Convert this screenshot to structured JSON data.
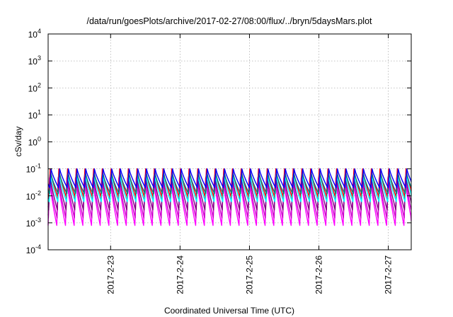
{
  "chart_data": {
    "type": "line",
    "title": "/data/run/goesPlots/archive/2017-02-27/08:00/flux/../bryn/5daysMars.plot",
    "xlabel": "Coordinated Universal Time (UTC)",
    "ylabel": "cSv/day",
    "yscale": "log",
    "ylim": [
      0.0001,
      10000
    ],
    "y_ticks": [
      {
        "value": 0.0001,
        "base": "10",
        "exp": "-4"
      },
      {
        "value": 0.001,
        "base": "10",
        "exp": "-3"
      },
      {
        "value": 0.01,
        "base": "10",
        "exp": "-2"
      },
      {
        "value": 0.1,
        "base": "10",
        "exp": "-1"
      },
      {
        "value": 1,
        "base": "10",
        "exp": "0"
      },
      {
        "value": 10,
        "base": "10",
        "exp": "1"
      },
      {
        "value": 100,
        "base": "10",
        "exp": "2"
      },
      {
        "value": 1000,
        "base": "10",
        "exp": "3"
      },
      {
        "value": 10000,
        "base": "10",
        "exp": "4"
      }
    ],
    "x_range_days": [
      22.1,
      27.33
    ],
    "x_ticks": [
      {
        "day": 23,
        "label": "2017-2-23"
      },
      {
        "day": 24,
        "label": "2017-2-24"
      },
      {
        "day": 25,
        "label": "2017-2-25"
      },
      {
        "day": 26,
        "label": "2017-2-26"
      },
      {
        "day": 27,
        "label": "2017-2-27"
      }
    ],
    "grid": true,
    "legend": "none",
    "pattern": {
      "period_days": 0.125,
      "peak_value": 0.1,
      "note": "sawtooth: sharp rise then decay each orbit-like cycle"
    },
    "series": [
      {
        "color": "#ff00ff",
        "peak": 0.045,
        "trough": 0.0008
      },
      {
        "color": "#cc00cc",
        "peak": 0.05,
        "trough": 0.0015
      },
      {
        "color": "#800080",
        "peak": 0.06,
        "trough": 0.003
      },
      {
        "color": "#ff0000",
        "peak": 0.1,
        "trough": 0.009
      },
      {
        "color": "#00ffff",
        "peak": 0.06,
        "trough": 0.006
      },
      {
        "color": "#008080",
        "peak": 0.07,
        "trough": 0.012
      },
      {
        "color": "#0000ff",
        "peak": 0.1,
        "trough": 0.02
      }
    ],
    "colors": {
      "grid": "#b0b0b0",
      "axis": "#000000"
    }
  }
}
